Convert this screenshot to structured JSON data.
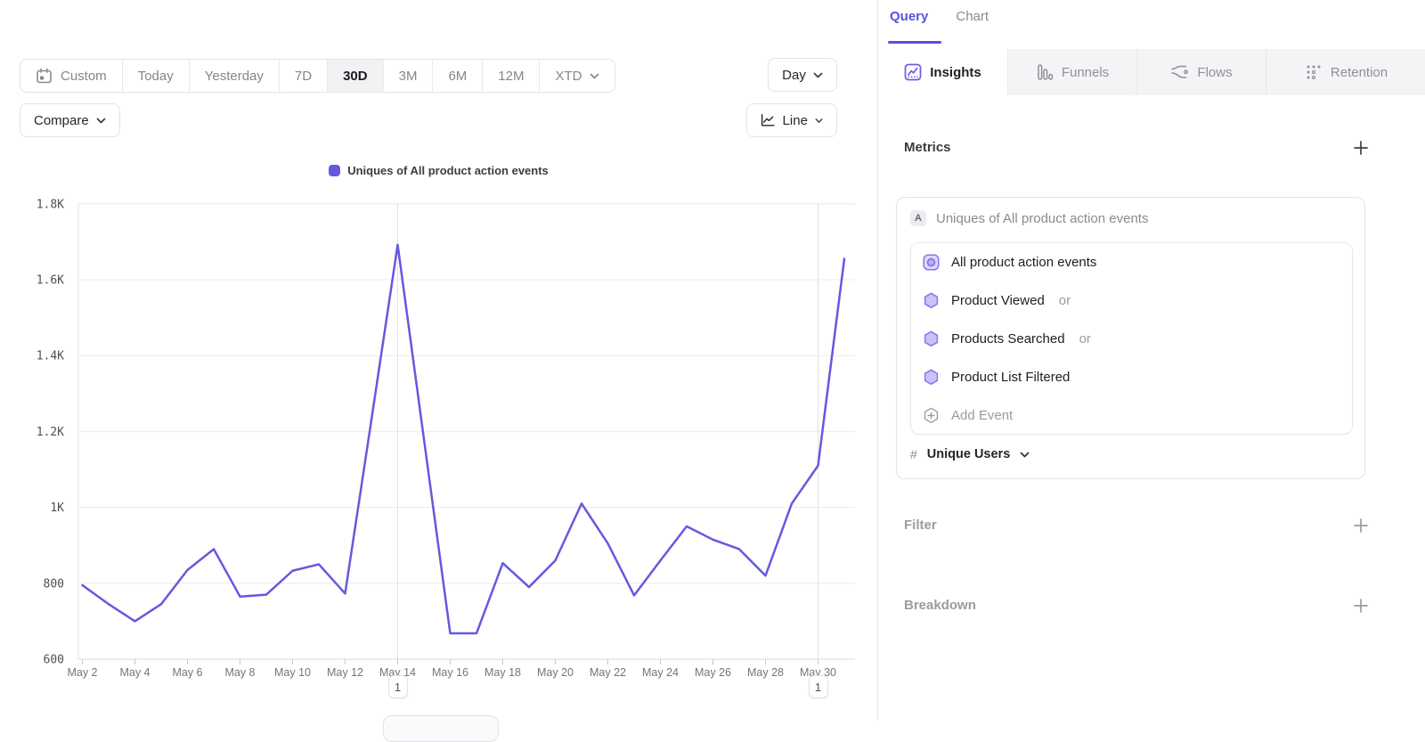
{
  "toolbar": {
    "ranges": [
      {
        "label": "Custom"
      },
      {
        "label": "Today"
      },
      {
        "label": "Yesterday"
      },
      {
        "label": "7D"
      },
      {
        "label": "30D"
      },
      {
        "label": "3M"
      },
      {
        "label": "6M"
      },
      {
        "label": "12M"
      },
      {
        "label": "XTD"
      }
    ],
    "active_range": "30D",
    "granularity_label": "Day",
    "compare_label": "Compare",
    "chart_type_label": "Line"
  },
  "chart_data": {
    "type": "line",
    "title": "Uniques of All product action events",
    "categories": [
      "May 2",
      "May 3",
      "May 4",
      "May 5",
      "May 6",
      "May 7",
      "May 8",
      "May 9",
      "May 10",
      "May 11",
      "May 12",
      "May 13",
      "May 14",
      "May 15",
      "May 16",
      "May 17",
      "May 18",
      "May 19",
      "May 20",
      "May 21",
      "May 22",
      "May 23",
      "May 24",
      "May 25",
      "May 26",
      "May 27",
      "May 28",
      "May 29",
      "May 30",
      "May 31"
    ],
    "series": [
      {
        "name": "Uniques of All product action events",
        "color": "#6459e0",
        "values": [
          795,
          745,
          700,
          745,
          835,
          890,
          765,
          770,
          833,
          850,
          773,
          1230,
          1692,
          1180,
          668,
          668,
          853,
          790,
          860,
          1010,
          905,
          768,
          860,
          950,
          915,
          890,
          820,
          1010,
          1110,
          1655
        ]
      }
    ],
    "y_ticks": [
      {
        "label": "600",
        "value": 600
      },
      {
        "label": "800",
        "value": 800
      },
      {
        "label": "1K",
        "value": 1000
      },
      {
        "label": "1.2K",
        "value": 1200
      },
      {
        "label": "1.4K",
        "value": 1400
      },
      {
        "label": "1.6K",
        "value": 1600
      },
      {
        "label": "1.8K",
        "value": 1800
      }
    ],
    "x_tick_labels": [
      "May 2",
      "May 4",
      "May 6",
      "May 8",
      "May 10",
      "May 12",
      "May 14",
      "May 16",
      "May 18",
      "May 20",
      "May 22",
      "May 24",
      "May 26",
      "May 28",
      "May 30"
    ],
    "ylim": [
      600,
      1800
    ],
    "grid": "horizontal",
    "legend_position": "top-center"
  },
  "annotations": [
    {
      "label": "1",
      "category": "May 14"
    },
    {
      "label": "1",
      "category": "May 30"
    }
  ],
  "panel": {
    "top_tabs": [
      {
        "label": "Query"
      },
      {
        "label": "Chart"
      }
    ],
    "active_top_tab": "Query",
    "report_tabs": [
      {
        "label": "Insights"
      },
      {
        "label": "Funnels"
      },
      {
        "label": "Flows"
      },
      {
        "label": "Retention"
      }
    ],
    "active_report_tab": "Insights",
    "metrics": {
      "title": "Metrics",
      "group_badge": "A",
      "group_name": "Uniques of All product action events",
      "events": [
        {
          "name": "All product action events",
          "suffix": ""
        },
        {
          "name": "Product Viewed",
          "suffix": "or"
        },
        {
          "name": "Products Searched",
          "suffix": "or"
        },
        {
          "name": "Product List Filtered",
          "suffix": ""
        }
      ],
      "add_event_label": "Add Event",
      "measurement": {
        "prefix": "#",
        "label": "Unique Users"
      }
    },
    "filter": {
      "title": "Filter"
    },
    "breakdown": {
      "title": "Breakdown"
    }
  }
}
